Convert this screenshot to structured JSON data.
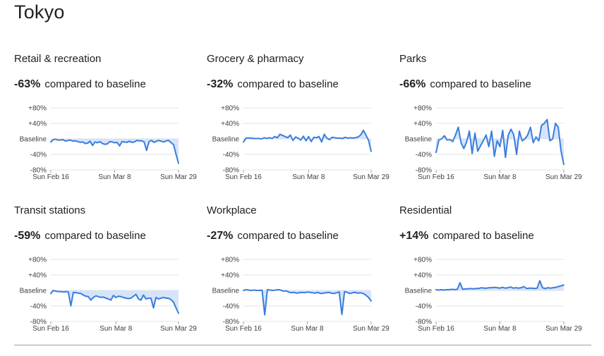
{
  "page": {
    "title": "Tokyo"
  },
  "colors": {
    "line": "#3b7ddd",
    "fill": "#d6e4fa",
    "grid": "#e3e3e3",
    "baseline": "#dadce0"
  },
  "chart_data": [
    {
      "type": "area",
      "title": "Retail & recreation",
      "summary_pct": "-63%",
      "summary_text": "compared to baseline",
      "yticks": [
        "+80%",
        "+40%",
        "Baseline",
        "-40%",
        "-80%"
      ],
      "ytick_values": [
        80,
        40,
        0,
        -40,
        -80
      ],
      "ylim": [
        -80,
        80
      ],
      "xticks": [
        "Sun Feb 16",
        "Sun Mar 8",
        "Sun Mar 29"
      ],
      "values": [
        -8,
        -2,
        -1,
        -3,
        -3,
        -2,
        -6,
        -4,
        -3,
        -6,
        -5,
        -7,
        -9,
        -8,
        -12,
        -11,
        -6,
        -17,
        -8,
        -10,
        -7,
        -12,
        -14,
        -13,
        -7,
        -8,
        -10,
        -9,
        -18,
        -7,
        -8,
        -9,
        -6,
        -9,
        -8,
        -4,
        -5,
        -5,
        -8,
        -30,
        -7,
        -4,
        -9,
        -6,
        -4,
        -6,
        -8,
        -5,
        -4,
        -10,
        -15,
        -40,
        -63
      ]
    },
    {
      "type": "area",
      "title": "Grocery & pharmacy",
      "summary_pct": "-32%",
      "summary_text": "compared to baseline",
      "yticks": [
        "+80%",
        "+40%",
        "Baseline",
        "-40%",
        "-80%"
      ],
      "ytick_values": [
        80,
        40,
        0,
        -40,
        -80
      ],
      "ylim": [
        -80,
        80
      ],
      "xticks": [
        "Sun Feb 16",
        "Sun Mar 8",
        "Sun Mar 29"
      ],
      "values": [
        -8,
        2,
        2,
        2,
        1,
        1,
        1,
        0,
        3,
        1,
        3,
        1,
        6,
        3,
        12,
        9,
        6,
        3,
        10,
        -4,
        5,
        2,
        -3,
        7,
        -5,
        6,
        -7,
        4,
        3,
        6,
        -8,
        12,
        2,
        -2,
        4,
        3,
        2,
        2,
        1,
        4,
        2,
        3,
        2,
        3,
        5,
        10,
        22,
        10,
        -4,
        -32
      ]
    },
    {
      "type": "area",
      "title": "Parks",
      "summary_pct": "-66%",
      "summary_text": "compared to baseline",
      "yticks": [
        "+80%",
        "+40%",
        "Baseline",
        "-40%",
        "-80%"
      ],
      "ytick_values": [
        80,
        40,
        0,
        -40,
        -80
      ],
      "ylim": [
        -80,
        80
      ],
      "xticks": [
        "Sun Feb 16",
        "Sun Mar 8",
        "Sun Mar 29"
      ],
      "values": [
        -35,
        -3,
        0,
        8,
        -3,
        -2,
        -7,
        10,
        30,
        -10,
        -25,
        -8,
        20,
        -38,
        15,
        -32,
        -18,
        -5,
        10,
        -20,
        20,
        -45,
        -5,
        -20,
        22,
        -48,
        10,
        25,
        10,
        -40,
        20,
        -5,
        0,
        10,
        30,
        -10,
        5,
        -5,
        35,
        40,
        50,
        -5,
        0,
        40,
        30,
        -30,
        -66
      ]
    },
    {
      "type": "area",
      "title": "Transit stations",
      "summary_pct": "-59%",
      "summary_text": "compared to baseline",
      "yticks": [
        "+80%",
        "+40%",
        "Baseline",
        "-40%",
        "-80%"
      ],
      "ytick_values": [
        80,
        40,
        0,
        -40,
        -80
      ],
      "ylim": [
        -80,
        80
      ],
      "xticks": [
        "Sun Feb 16",
        "Sun Mar 8",
        "Sun Mar 29"
      ],
      "values": [
        -8,
        0,
        -2,
        -3,
        -3,
        -4,
        -3,
        -4,
        -40,
        -5,
        -6,
        -7,
        -8,
        -12,
        -15,
        -16,
        -25,
        -18,
        -14,
        -16,
        -18,
        -17,
        -20,
        -22,
        -25,
        -13,
        -18,
        -15,
        -16,
        -18,
        -20,
        -21,
        -20,
        -15,
        -10,
        -22,
        -25,
        -12,
        -22,
        -20,
        -20,
        -45,
        -18,
        -22,
        -20,
        -18,
        -20,
        -20,
        -24,
        -30,
        -45,
        -59
      ]
    },
    {
      "type": "area",
      "title": "Workplace",
      "summary_pct": "-27%",
      "summary_text": "compared to baseline",
      "yticks": [
        "+80%",
        "+40%",
        "Baseline",
        "-40%",
        "-80%"
      ],
      "ytick_values": [
        80,
        40,
        0,
        -40,
        -80
      ],
      "ylim": [
        -80,
        80
      ],
      "xticks": [
        "Sun Feb 16",
        "Sun Mar 8",
        "Sun Mar 29"
      ],
      "values": [
        0,
        2,
        1,
        0,
        1,
        0,
        0,
        1,
        -63,
        2,
        1,
        0,
        1,
        2,
        1,
        -2,
        -1,
        -4,
        -6,
        -5,
        -7,
        -6,
        -5,
        -6,
        -4,
        -5,
        -6,
        -7,
        -5,
        -8,
        -7,
        -6,
        -5,
        -7,
        -8,
        -6,
        -4,
        -62,
        -3,
        -5,
        -8,
        -6,
        -5,
        -7,
        -6,
        -8,
        -12,
        -18,
        -27
      ]
    },
    {
      "type": "area",
      "title": "Residential",
      "summary_pct": "+14%",
      "summary_text": "compared to baseline",
      "yticks": [
        "+80%",
        "+40%",
        "Baseline",
        "-40%",
        "-80%"
      ],
      "ytick_values": [
        80,
        40,
        0,
        -40,
        -80
      ],
      "ylim": [
        -80,
        80
      ],
      "xticks": [
        "Sun Feb 16",
        "Sun Mar 8",
        "Sun Mar 29"
      ],
      "values": [
        2,
        1,
        2,
        1,
        2,
        2,
        3,
        2,
        3,
        20,
        3,
        4,
        4,
        5,
        4,
        5,
        5,
        7,
        6,
        6,
        7,
        7,
        8,
        7,
        6,
        8,
        6,
        7,
        9,
        6,
        7,
        6,
        7,
        10,
        5,
        6,
        6,
        5,
        6,
        25,
        7,
        5,
        7,
        6,
        7,
        8,
        10,
        12,
        14
      ]
    }
  ]
}
